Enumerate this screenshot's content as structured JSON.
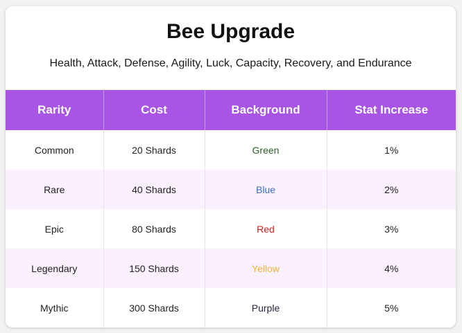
{
  "title": "Bee Upgrade",
  "subtitle": "Health, Attack, Defense, Agility, Luck, Capacity, Recovery, and Endurance",
  "table": {
    "headers": [
      "Rarity",
      "Cost",
      "Background",
      "Stat Increase"
    ],
    "rows": [
      {
        "rarity": "Common",
        "cost": "20 Shards",
        "background": "Green",
        "background_color": "#2e5e2e",
        "stat": "1%"
      },
      {
        "rarity": "Rare",
        "cost": "40 Shards",
        "background": "Blue",
        "background_color": "#3b6fc4",
        "stat": "2%"
      },
      {
        "rarity": "Epic",
        "cost": "80 Shards",
        "background": "Red",
        "background_color": "#d42020",
        "stat": "3%"
      },
      {
        "rarity": "Legendary",
        "cost": "150 Shards",
        "background": "Yellow",
        "background_color": "#f2b33d",
        "stat": "4%"
      },
      {
        "rarity": "Mythic",
        "cost": "300 Shards",
        "background": "Purple",
        "background_color": "#2a2440",
        "stat": "5%"
      }
    ]
  },
  "colors": {
    "header_bg": "#a855e6",
    "alt_row_bg": "#fbf0fd"
  }
}
